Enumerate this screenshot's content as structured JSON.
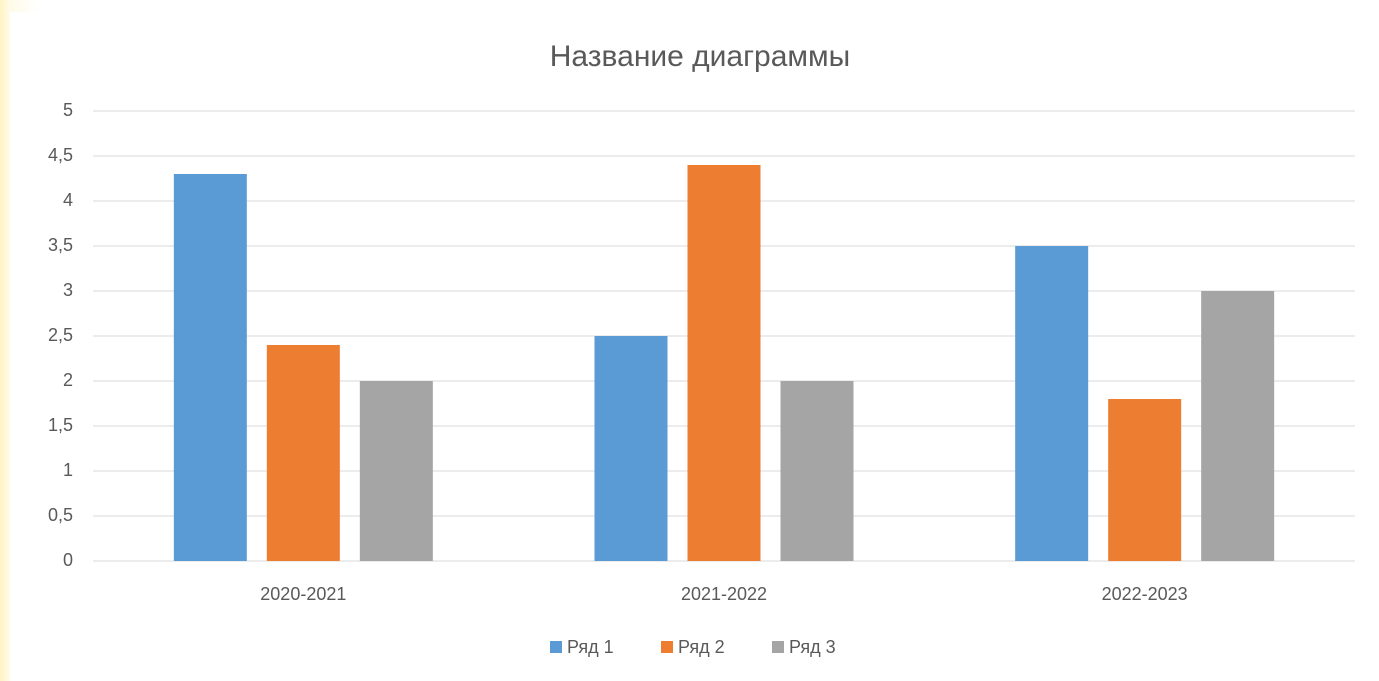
{
  "chart_data": {
    "type": "bar",
    "title": "Название диаграммы",
    "categories": [
      "2020-2021",
      "2021-2022",
      "2022-2023"
    ],
    "series": [
      {
        "name": "Ряд 1",
        "color": "#5b9bd5",
        "values": [
          4.3,
          2.5,
          3.5
        ]
      },
      {
        "name": "Ряд 2",
        "color": "#ed7d31",
        "values": [
          2.4,
          4.4,
          1.8
        ]
      },
      {
        "name": "Ряд 3",
        "color": "#a5a5a5",
        "values": [
          2,
          2,
          3
        ]
      }
    ],
    "ylim": [
      0,
      5
    ],
    "yticks": [
      0,
      {
        "value": 0.5,
        "label": "0,5"
      },
      1,
      {
        "value": 1.5,
        "label": "1,5"
      },
      2,
      {
        "value": 2.5,
        "label": "2,5"
      },
      3,
      {
        "value": 3.5,
        "label": "3,5"
      },
      4,
      {
        "value": 4.5,
        "label": "4,5"
      },
      5
    ],
    "grid": true,
    "legend": "bottom"
  }
}
